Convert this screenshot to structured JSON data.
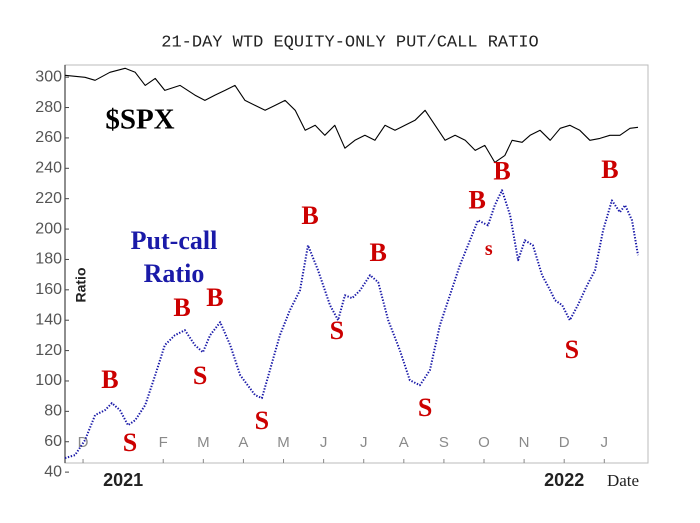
{
  "chart_data": {
    "type": "line",
    "title": "21-DAY WTD EQUITY-ONLY PUT/CALL RATIO",
    "xlabel": "Date",
    "ylabel": "Ratio",
    "xlim": [
      -0.45,
      14.09
    ],
    "ylim": [
      46,
      308
    ],
    "yticks": [
      40,
      60,
      80,
      100,
      120,
      140,
      160,
      180,
      200,
      220,
      240,
      260,
      280,
      300
    ],
    "xticks": [
      {
        "value": 0,
        "label": "D"
      },
      {
        "value": 2,
        "label": "F"
      },
      {
        "value": 3,
        "label": "M"
      },
      {
        "value": 4,
        "label": "A"
      },
      {
        "value": 5,
        "label": "M"
      },
      {
        "value": 6,
        "label": "J"
      },
      {
        "value": 7,
        "label": "J"
      },
      {
        "value": 8,
        "label": "A"
      },
      {
        "value": 9,
        "label": "S"
      },
      {
        "value": 10,
        "label": "O"
      },
      {
        "value": 11,
        "label": "N"
      },
      {
        "value": 12,
        "label": "D"
      },
      {
        "value": 13,
        "label": "J"
      }
    ],
    "year_labels": [
      {
        "value": 1,
        "label": "2021"
      },
      {
        "value": 12,
        "label": "2022"
      }
    ],
    "grid": false,
    "series": [
      {
        "name": "$SPX",
        "color": "#000000",
        "style": "solid",
        "x": [
          -0.45,
          0.05,
          0.3,
          0.67,
          1.05,
          1.3,
          1.55,
          1.8,
          2.04,
          2.42,
          2.79,
          3.04,
          3.29,
          3.54,
          3.79,
          4.04,
          4.29,
          4.54,
          4.79,
          5.04,
          5.29,
          5.54,
          5.79,
          6.03,
          6.28,
          6.53,
          6.78,
          7.03,
          7.28,
          7.53,
          7.78,
          8.03,
          8.28,
          8.53,
          8.78,
          9.03,
          9.28,
          9.53,
          9.78,
          10.02,
          10.27,
          10.52,
          10.7,
          10.95,
          11.15,
          11.4,
          11.65,
          11.9,
          12.14,
          12.39,
          12.64,
          12.89,
          13.14,
          13.39,
          13.64,
          13.84
        ],
        "values": [
          301.2,
          299.9,
          297.9,
          303.2,
          305.8,
          303.2,
          294.6,
          299.2,
          291.3,
          294.6,
          288.2,
          284.7,
          288.2,
          291.3,
          294.6,
          284.7,
          281.4,
          278.2,
          281.4,
          284.7,
          278.2,
          265,
          268.3,
          261.7,
          268.3,
          253.2,
          258.4,
          261.7,
          258.4,
          268.3,
          265,
          268.3,
          271.6,
          278.2,
          268.3,
          258.4,
          261.7,
          258.4,
          251.8,
          255.1,
          243.9,
          248.5,
          258.4,
          257.1,
          261.7,
          265,
          258.4,
          266.3,
          268.3,
          265,
          258.4,
          259.7,
          261.7,
          261.7,
          266.3,
          267
        ]
      },
      {
        "name": "Put-call Ratio",
        "color": "#1a1aa8",
        "style": "dotted",
        "x": [
          -0.45,
          -0.2,
          0.05,
          0.3,
          0.55,
          0.72,
          0.92,
          1.12,
          1.3,
          1.55,
          1.8,
          2.04,
          2.29,
          2.54,
          2.79,
          2.99,
          3.17,
          3.42,
          3.67,
          3.92,
          4.29,
          4.46,
          4.66,
          4.91,
          5.16,
          5.41,
          5.61,
          5.86,
          6.16,
          6.36,
          6.53,
          6.71,
          6.91,
          7.16,
          7.36,
          7.61,
          7.9,
          8.15,
          8.4,
          8.65,
          8.9,
          9.15,
          9.4,
          9.65,
          9.85,
          10.1,
          10.27,
          10.45,
          10.65,
          10.85,
          11.02,
          11.22,
          11.45,
          11.65,
          11.77,
          11.95,
          12.14,
          12.34,
          12.57,
          12.77,
          12.97,
          13.19,
          13.39,
          13.52,
          13.69,
          13.84
        ],
        "values": [
          49.2,
          51.2,
          61.1,
          77.5,
          80.8,
          85.4,
          80.8,
          70.9,
          74.2,
          84.1,
          103.8,
          123.6,
          130.1,
          133.4,
          123.6,
          118.9,
          130.1,
          138.7,
          123.6,
          103.8,
          90.7,
          88.7,
          107.1,
          130.1,
          146.6,
          159.7,
          189.3,
          172.9,
          149.9,
          140,
          156.4,
          154.5,
          159.7,
          169.6,
          165,
          140,
          120.3,
          100.5,
          97.2,
          107.1,
          136.7,
          156.4,
          176.2,
          192.6,
          205.8,
          202.5,
          215.7,
          225.5,
          209.1,
          179.5,
          192.6,
          189.3,
          169.6,
          159.7,
          153.2,
          149.9,
          140,
          149.9,
          163,
          172.9,
          199.2,
          218.9,
          211.1,
          215.7,
          205.8,
          182.8
        ]
      }
    ],
    "annotations": [
      {
        "text": "B",
        "x": 0.67,
        "y": 99.2
      },
      {
        "text": "S",
        "x": 1.17,
        "y": 57.8
      },
      {
        "text": "B",
        "x": 2.47,
        "y": 146.6
      },
      {
        "text": "S",
        "x": 2.92,
        "y": 101.8
      },
      {
        "text": "B",
        "x": 3.29,
        "y": 153.2
      },
      {
        "text": "S",
        "x": 4.46,
        "y": 72.2
      },
      {
        "text": "B",
        "x": 5.66,
        "y": 207.1
      },
      {
        "text": "S",
        "x": 6.33,
        "y": 131.4
      },
      {
        "text": "B",
        "x": 7.36,
        "y": 182.8
      },
      {
        "text": "S",
        "x": 8.53,
        "y": 80.8
      },
      {
        "text": "B",
        "x": 9.83,
        "y": 217.6
      },
      {
        "text": "s",
        "x": 10.12,
        "y": 186.1
      },
      {
        "text": "B",
        "x": 10.45,
        "y": 236.7
      },
      {
        "text": "S",
        "x": 12.19,
        "y": 118.9
      },
      {
        "text": "B",
        "x": 13.14,
        "y": 237.4
      }
    ]
  }
}
